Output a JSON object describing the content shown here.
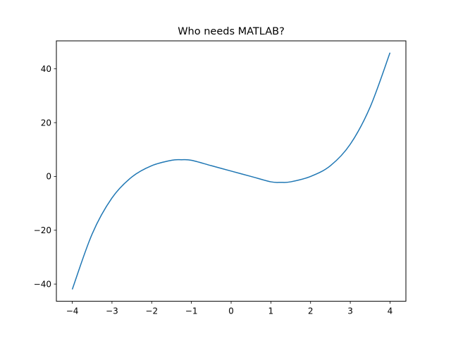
{
  "chart_data": {
    "type": "line",
    "title": "Who needs MATLAB?",
    "xlabel": "",
    "ylabel": "",
    "xlim": [
      -4.4,
      4.4
    ],
    "ylim": [
      -46.4,
      50.4
    ],
    "grid": false,
    "legend": "none",
    "x_ticks": [
      -4,
      -3,
      -2,
      -1,
      0,
      1,
      2,
      3,
      4
    ],
    "x_tick_labels": [
      "−4",
      "−3",
      "−2",
      "−1",
      "0",
      "1",
      "2",
      "3",
      "4"
    ],
    "y_ticks": [
      -40,
      -20,
      0,
      20,
      40
    ],
    "y_tick_labels": [
      "−40",
      "−20",
      "0",
      "20",
      "40"
    ],
    "series": [
      {
        "color": "#1f77b4",
        "x": [
          -4,
          -3.5,
          -3,
          -2.5,
          -2,
          -1.5,
          -1.25,
          -1,
          -0.5,
          0,
          0.5,
          1,
          1.25,
          1.5,
          2,
          2.5,
          3,
          3.5,
          4
        ],
        "y": [
          -42,
          -21.4,
          -8,
          -0.2,
          4,
          6,
          6.2,
          6,
          4,
          2,
          0,
          -2,
          -2.2,
          -2,
          0,
          4,
          12,
          25.8,
          46
        ]
      }
    ]
  }
}
